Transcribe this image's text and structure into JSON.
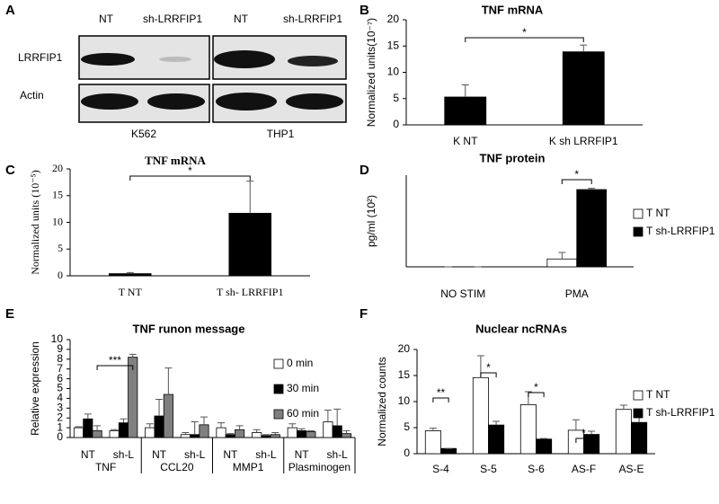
{
  "blot": {
    "panel": "A",
    "lanes": [
      "NT",
      "sh-LRRFIP1",
      "NT",
      "sh-LRRFIP1"
    ],
    "rows": [
      "LRRFIP1",
      "Actin"
    ],
    "cell_lines": [
      "K562",
      "THP1"
    ]
  },
  "chart_data": [
    {
      "type": "bar",
      "panel": "B",
      "title": "TNF mRNA",
      "y_label": "Normalized units(10⁻⁷)",
      "categories": [
        "K NT",
        "K sh LRRFIP1"
      ],
      "series": [
        {
          "color": "#000000",
          "values": [
            5.3,
            13.9
          ],
          "errors": [
            2.3,
            1.3
          ]
        }
      ],
      "ylim": [
        0,
        20
      ],
      "yticks": [
        0,
        5,
        10,
        15,
        20
      ],
      "annotations": [
        "*"
      ]
    },
    {
      "type": "bar",
      "panel": "C",
      "title": "TNF mRNA",
      "y_label": "Normalized units (10⁻⁵)",
      "categories": [
        "T NT",
        "T sh- LRRFIP1"
      ],
      "series": [
        {
          "color": "#000000",
          "values": [
            0.4,
            11.7
          ],
          "errors": [
            0.2,
            6.0
          ]
        }
      ],
      "ylim": [
        0,
        20
      ],
      "yticks": [
        0,
        5,
        10,
        15,
        20
      ],
      "annotations": [
        "*"
      ]
    },
    {
      "type": "bar",
      "panel": "D",
      "title": "TNF protein",
      "y_label": "pg/ml (10²)",
      "categories": [
        "NO STIM",
        "PMA"
      ],
      "series": [
        {
          "name": "T NT",
          "color": "#ffffff",
          "values": [
            0,
            0.6
          ],
          "errors": [
            0,
            0.5
          ]
        },
        {
          "name": "T sh-LRRFIP1",
          "color": "#000000",
          "values": [
            0,
            5.9
          ],
          "errors": [
            0,
            0.1
          ]
        }
      ],
      "ylim": [
        0,
        7
      ],
      "annotations": [
        "*"
      ]
    },
    {
      "type": "bar",
      "panel": "E",
      "title": "TNF runon message",
      "y_label": "Relative expression",
      "categories": [
        "NT",
        "sh-L",
        "NT",
        "sh-L",
        "NT",
        "sh-L",
        "NT",
        "sh-L"
      ],
      "groups": [
        "TNF",
        "CCL20",
        "MMP1",
        "Plasminogen"
      ],
      "series": [
        {
          "name": "0 min",
          "color": "#ffffff",
          "values": [
            1.0,
            0.7,
            1.0,
            0.3,
            1.0,
            0.5,
            1.0,
            1.6
          ],
          "errors": [
            0.1,
            0.1,
            0.4,
            0.2,
            0.5,
            0.3,
            0.4,
            1.2
          ]
        },
        {
          "name": "30 min",
          "color": "#000000",
          "values": [
            1.9,
            1.5,
            2.2,
            0.3,
            0.3,
            0.2,
            0.7,
            1.2
          ],
          "errors": [
            0.5,
            0.4,
            1.7,
            1.3,
            0.1,
            0.1,
            0.2,
            1.7
          ]
        },
        {
          "name": "60 min",
          "color": "#808080",
          "values": [
            0.7,
            8.2,
            4.4,
            1.3,
            0.8,
            0.3,
            0.6,
            0.4
          ],
          "errors": [
            0.5,
            0.3,
            2.7,
            0.8,
            0.4,
            0.2,
            0.1,
            0.3
          ]
        }
      ],
      "ylim": [
        0,
        10
      ],
      "yticks": [
        0,
        1,
        2,
        3,
        4,
        5,
        6,
        7,
        8,
        9,
        10
      ],
      "annotations": [
        "***"
      ]
    },
    {
      "type": "bar",
      "panel": "F",
      "title": "Nuclear ncRNAs",
      "y_label": "Normalized counts",
      "categories": [
        "S-4",
        "S-5",
        "S-6",
        "AS-F",
        "AS-E"
      ],
      "series": [
        {
          "name": "T NT",
          "color": "#ffffff",
          "values": [
            4.4,
            14.6,
            9.4,
            4.5,
            8.5
          ],
          "errors": [
            0.5,
            4.2,
            2.5,
            2.0,
            0.8
          ]
        },
        {
          "name": "T sh-LRRFIP1",
          "color": "#000000",
          "values": [
            1.0,
            5.5,
            2.8,
            3.7,
            6.0
          ],
          "errors": [
            0,
            0.7,
            0.1,
            0.6,
            1.0
          ]
        }
      ],
      "ylim": [
        0,
        20
      ],
      "yticks": [
        0,
        5,
        10,
        15,
        20
      ],
      "annotations": [
        "**",
        "*",
        "*",
        "*"
      ]
    }
  ]
}
